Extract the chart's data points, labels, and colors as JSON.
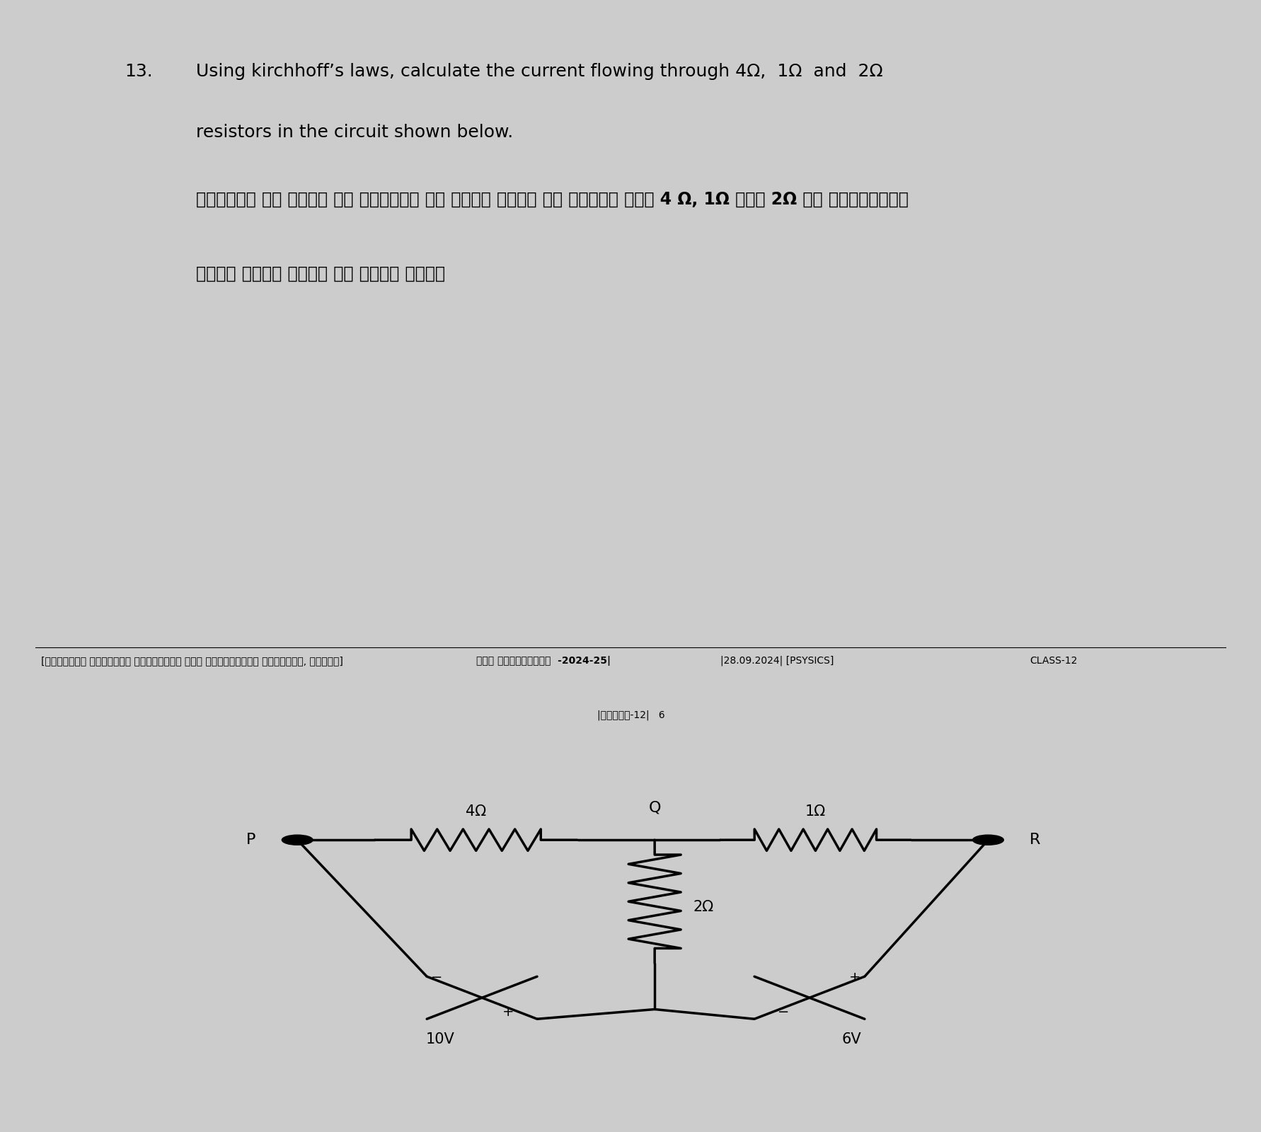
{
  "background_color": "#ffffff",
  "panel1_bg": "#ffffff",
  "panel2_bg": "#ffffff",
  "border_color": "#2d8a8a",
  "separator_color": "#cccccc",
  "text_color": "#000000",
  "question_num": "13.",
  "question_en_line1": "Using kirchhoff’s laws, calculate the current flowing through 4Ω,  1Ω  and  2Ω",
  "question_en_line2": "resistors in the circuit shown below.",
  "question_hi_line1": "किरचॉफ के नियम का प्रयोग कर नीचे दिये गए परिपथ में 4 Ω, 1Ω तथा 2Ω से प्रवाहित",
  "question_hi_line2": "होने वाली धारा की गणना करे।",
  "footer_left": "[झारखण्ड शैक्षिक अनुसंधान एवं प्रशिक्षण पारिषद्, राँची]",
  "footer_mid1": "रेल प्रोजेक्ट  -2024-25|",
  "footer_mid2": "|28.09.2024| [PSYSICS]",
  "footer_right": "CLASS-12",
  "footer_page": "|कक्षा-12|   6",
  "resistor_4ohm_label": "4Ω",
  "resistor_1ohm_label": "1Ω",
  "resistor_2ohm_label": "2Ω",
  "battery_10v_label": "10V",
  "battery_6v_label": "6V",
  "node_P_label": "P",
  "node_Q_label": "Q",
  "node_R_label": "R"
}
